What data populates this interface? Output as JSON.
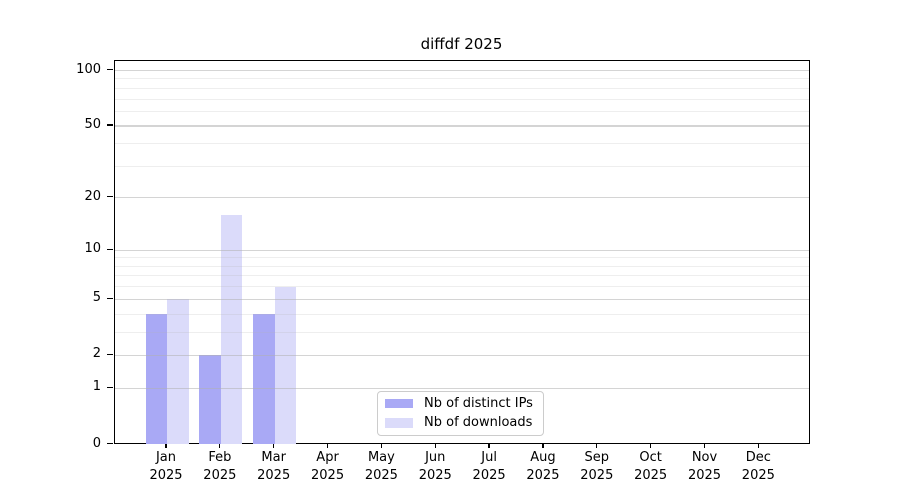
{
  "chart_data": {
    "type": "bar",
    "title": "diffdf 2025",
    "categories": [
      "Jan",
      "Feb",
      "Mar",
      "Apr",
      "May",
      "Jun",
      "Jul",
      "Aug",
      "Sep",
      "Oct",
      "Nov",
      "Dec"
    ],
    "year_label": "2025",
    "series": [
      {
        "name": "Nb of distinct IPs",
        "color": "#a9a9f5",
        "values": [
          4,
          2,
          4,
          0,
          0,
          0,
          0,
          0,
          0,
          0,
          0,
          0
        ]
      },
      {
        "name": "Nb of downloads",
        "color": "#dbdbfa",
        "values": [
          5,
          16,
          6,
          0,
          0,
          0,
          0,
          0,
          0,
          0,
          0,
          0
        ]
      }
    ],
    "xlabel": "",
    "ylabel": "",
    "y_axis": {
      "scale": "log1p",
      "ticks": [
        0,
        1,
        2,
        5,
        10,
        20,
        50,
        100
      ],
      "minor_gridlines": [
        3,
        4,
        6,
        7,
        8,
        9,
        30,
        40,
        60,
        70,
        80,
        90
      ],
      "ylim": [
        0,
        114
      ]
    },
    "grid": {
      "enabled": true,
      "major_color": "rgba(176,176,176,0.55)",
      "minor_color": "rgba(176,176,176,0.22)",
      "drawn_above_bars": true
    },
    "legend": {
      "position": "lower-center"
    }
  }
}
